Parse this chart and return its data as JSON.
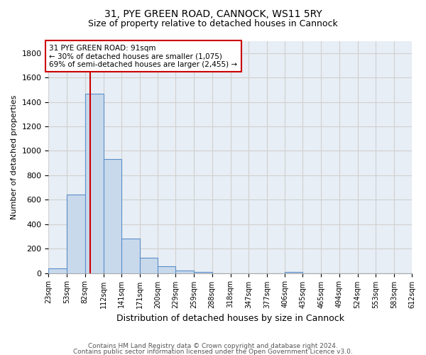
{
  "title1": "31, PYE GREEN ROAD, CANNOCK, WS11 5RY",
  "title2": "Size of property relative to detached houses in Cannock",
  "xlabel": "Distribution of detached houses by size in Cannock",
  "ylabel": "Number of detached properties",
  "footer1": "Contains HM Land Registry data © Crown copyright and database right 2024.",
  "footer2": "Contains public sector information licensed under the Open Government Licence v3.0.",
  "annotation_line1": "31 PYE GREEN ROAD: 91sqm",
  "annotation_line2": "← 30% of detached houses are smaller (1,075)",
  "annotation_line3": "69% of semi-detached houses are larger (2,455) →",
  "bar_color": "#c9d9ec",
  "bar_edge_color": "#5b8fc9",
  "redline_color": "#cc0000",
  "annotation_box_color": "#cc0000",
  "grid_color": "#d0d0d0",
  "background_color": "#e8eef5",
  "ylim": [
    0,
    1900
  ],
  "yticks": [
    0,
    200,
    400,
    600,
    800,
    1000,
    1200,
    1400,
    1600,
    1800
  ],
  "bin_edges": [
    23,
    53,
    82,
    112,
    141,
    171,
    200,
    229,
    259,
    288,
    318,
    347,
    377,
    406,
    435,
    465,
    494,
    524,
    553,
    583,
    612
  ],
  "bin_labels": [
    "23sqm",
    "53sqm",
    "82sqm",
    "112sqm",
    "141sqm",
    "171sqm",
    "200sqm",
    "229sqm",
    "259sqm",
    "288sqm",
    "318sqm",
    "347sqm",
    "377sqm",
    "406sqm",
    "435sqm",
    "465sqm",
    "494sqm",
    "524sqm",
    "553sqm",
    "583sqm",
    "612sqm"
  ],
  "values": [
    40,
    645,
    1470,
    935,
    285,
    125,
    55,
    22,
    12,
    0,
    0,
    0,
    0,
    12,
    0,
    0,
    0,
    0,
    0,
    0
  ],
  "redline_x": 91
}
